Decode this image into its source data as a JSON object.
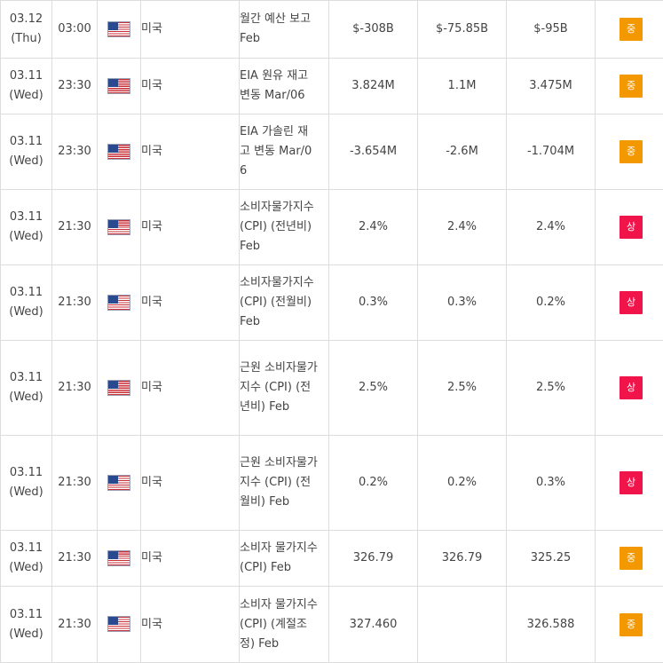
{
  "colors": {
    "importance_mid": "#f39800",
    "importance_high": "#f0144b",
    "border": "#dddddd"
  },
  "rows": [
    {
      "date": "03.12",
      "day": "(Thu)",
      "time": "03:00",
      "flag_icon": "us-flag-icon",
      "country": "미국",
      "event": "월간 예산 보고 Feb",
      "actual": "$-308B",
      "forecast": "$-75.85B",
      "previous": "$-95B",
      "importance": "중"
    },
    {
      "date": "03.11",
      "day": "(Wed)",
      "time": "23:30",
      "flag_icon": "us-flag-icon",
      "country": "미국",
      "event": "EIA 원유 재고 변동 Mar/06",
      "actual": "3.824M",
      "forecast": "1.1M",
      "previous": "3.475M",
      "importance": "중"
    },
    {
      "date": "03.11",
      "day": "(Wed)",
      "time": "23:30",
      "flag_icon": "us-flag-icon",
      "country": "미국",
      "event": "EIA 가솔린 재고 변동 Mar/06",
      "actual": "-3.654M",
      "forecast": "-2.6M",
      "previous": "-1.704M",
      "importance": "중"
    },
    {
      "date": "03.11",
      "day": "(Wed)",
      "time": "21:30",
      "flag_icon": "us-flag-icon",
      "country": "미국",
      "event": "소비자물가지수 (CPI) (전년비) Feb",
      "actual": "2.4%",
      "forecast": "2.4%",
      "previous": "2.4%",
      "importance": "상"
    },
    {
      "date": "03.11",
      "day": "(Wed)",
      "time": "21:30",
      "flag_icon": "us-flag-icon",
      "country": "미국",
      "event": "소비자물가지수 (CPI) (전월비) Feb",
      "actual": "0.3%",
      "forecast": "0.3%",
      "previous": "0.2%",
      "importance": "상"
    },
    {
      "date": "03.11",
      "day": "(Wed)",
      "time": "21:30",
      "flag_icon": "us-flag-icon",
      "country": "미국",
      "event": "근원 소비자물가지수 (CPI) (전년비) Feb",
      "actual": "2.5%",
      "forecast": "2.5%",
      "previous": "2.5%",
      "importance": "상"
    },
    {
      "date": "03.11",
      "day": "(Wed)",
      "time": "21:30",
      "flag_icon": "us-flag-icon",
      "country": "미국",
      "event": "근원 소비자물가지수 (CPI) (전월비) Feb",
      "actual": "0.2%",
      "forecast": "0.2%",
      "previous": "0.3%",
      "importance": "상"
    },
    {
      "date": "03.11",
      "day": "(Wed)",
      "time": "21:30",
      "flag_icon": "us-flag-icon",
      "country": "미국",
      "event": "소비자 물가지수(CPI) Feb",
      "actual": "326.79",
      "forecast": "326.79",
      "previous": "325.25",
      "importance": "중"
    },
    {
      "date": "03.11",
      "day": "(Wed)",
      "time": "21:30",
      "flag_icon": "us-flag-icon",
      "country": "미국",
      "event": "소비자 물가지수(CPI) (계절조정) Feb",
      "actual": "327.460",
      "forecast": "",
      "previous": "326.588",
      "importance": "중"
    }
  ]
}
